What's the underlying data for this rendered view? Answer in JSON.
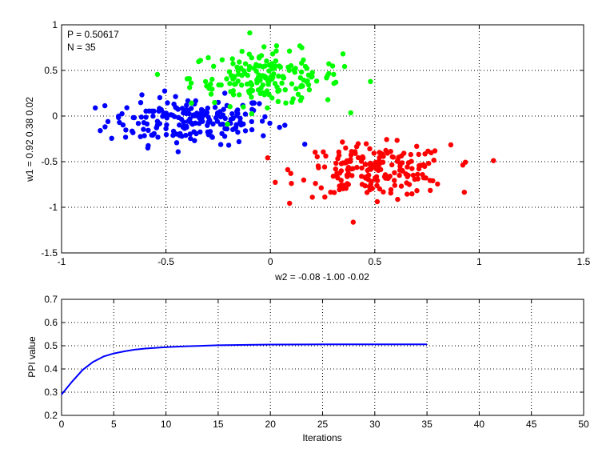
{
  "chart_data": [
    {
      "type": "scatter",
      "annotations": [
        "P = 0.50617",
        "N = 35"
      ],
      "xlabel": "w2 = -0.08  -1.00  -0.02",
      "ylabel": "w1 = 0.92  0.38  0.02",
      "xlim": [
        -1,
        1.5
      ],
      "ylim": [
        -1.5,
        1
      ],
      "xticks": [
        "-1",
        "-0.5",
        "0",
        "0.5",
        "1",
        "1.5"
      ],
      "yticks": [
        "-1.5",
        "-1",
        "-0.5",
        "0",
        "0.5",
        "1"
      ],
      "grid": true,
      "series": [
        {
          "color": "#0000ff",
          "center": [
            -0.38,
            -0.05
          ],
          "spread": [
            0.2,
            0.13
          ],
          "count": 200
        },
        {
          "color": "#00ff00",
          "center": [
            -0.02,
            0.42
          ],
          "spread": [
            0.18,
            0.15
          ],
          "count": 180
        },
        {
          "color": "#ff0000",
          "center": [
            0.5,
            -0.6
          ],
          "spread": [
            0.18,
            0.14
          ],
          "count": 200
        }
      ]
    },
    {
      "type": "line",
      "xlabel": "Iterations",
      "ylabel": "PPI value",
      "xlim": [
        0,
        50
      ],
      "ylim": [
        0.2,
        0.7
      ],
      "xticks": [
        "0",
        "5",
        "10",
        "15",
        "20",
        "25",
        "30",
        "35",
        "40",
        "45",
        "50"
      ],
      "yticks": [
        "0.2",
        "0.3",
        "0.4",
        "0.5",
        "0.6",
        "0.7"
      ],
      "grid": true,
      "series": [
        {
          "color": "#0000ff",
          "x": [
            0,
            1,
            2,
            3,
            4,
            5,
            6,
            7,
            8,
            10,
            12,
            15,
            20,
            25,
            30,
            35
          ],
          "values": [
            0.29,
            0.345,
            0.395,
            0.43,
            0.453,
            0.467,
            0.476,
            0.483,
            0.488,
            0.494,
            0.498,
            0.502,
            0.505,
            0.506,
            0.506,
            0.506
          ]
        }
      ]
    }
  ]
}
